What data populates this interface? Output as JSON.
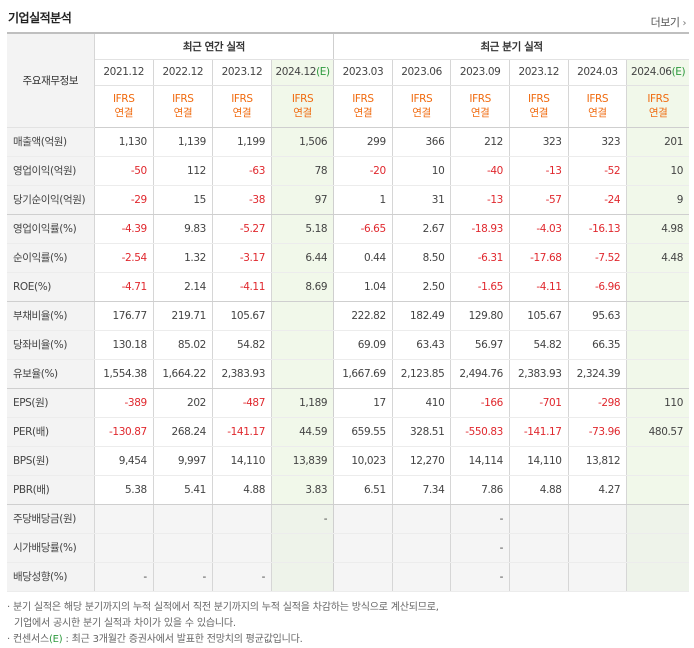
{
  "title": "기업실적분석",
  "more_label": "더보기",
  "corner_label": "주요재무정보",
  "annual_group": "최근 연간 실적",
  "quarter_group": "최근 분기 실적",
  "annual_dates": [
    "2021.12",
    "2022.12",
    "2023.12",
    "2024.12"
  ],
  "quarter_dates": [
    "2023.03",
    "2023.06",
    "2023.09",
    "2023.12",
    "2024.03",
    "2024.06"
  ],
  "est_mark": "(E)",
  "ifrs_label": "IFRS",
  "ifrs_sub": "연결",
  "rows": [
    {
      "label": "매출액(억원)",
      "values": [
        "1,130",
        "1,139",
        "1,199",
        "1,506",
        "299",
        "366",
        "212",
        "323",
        "323",
        "201"
      ]
    },
    {
      "label": "영업이익(억원)",
      "values": [
        "-50",
        "112",
        "-63",
        "78",
        "-20",
        "10",
        "-40",
        "-13",
        "-52",
        "10"
      ]
    },
    {
      "label": "당기순이익(억원)",
      "values": [
        "-29",
        "15",
        "-38",
        "97",
        "1",
        "31",
        "-13",
        "-57",
        "-24",
        "9"
      ]
    },
    {
      "label": "영업이익률(%)",
      "values": [
        "-4.39",
        "9.83",
        "-5.27",
        "5.18",
        "-6.65",
        "2.67",
        "-18.93",
        "-4.03",
        "-16.13",
        "4.98"
      ]
    },
    {
      "label": "순이익률(%)",
      "values": [
        "-2.54",
        "1.32",
        "-3.17",
        "6.44",
        "0.44",
        "8.50",
        "-6.31",
        "-17.68",
        "-7.52",
        "4.48"
      ]
    },
    {
      "label": "ROE(%)",
      "values": [
        "-4.71",
        "2.14",
        "-4.11",
        "8.69",
        "1.04",
        "2.50",
        "-1.65",
        "-4.11",
        "-6.96",
        ""
      ]
    },
    {
      "label": "부채비율(%)",
      "values": [
        "176.77",
        "219.71",
        "105.67",
        "",
        "222.82",
        "182.49",
        "129.80",
        "105.67",
        "95.63",
        ""
      ]
    },
    {
      "label": "당좌비율(%)",
      "values": [
        "130.18",
        "85.02",
        "54.82",
        "",
        "69.09",
        "63.43",
        "56.97",
        "54.82",
        "66.35",
        ""
      ]
    },
    {
      "label": "유보율(%)",
      "values": [
        "1,554.38",
        "1,664.22",
        "2,383.93",
        "",
        "1,667.69",
        "2,123.85",
        "2,494.76",
        "2,383.93",
        "2,324.39",
        ""
      ]
    },
    {
      "label": "EPS(원)",
      "values": [
        "-389",
        "202",
        "-487",
        "1,189",
        "17",
        "410",
        "-166",
        "-701",
        "-298",
        "110"
      ]
    },
    {
      "label": "PER(배)",
      "values": [
        "-130.87",
        "268.24",
        "-141.17",
        "44.59",
        "659.55",
        "328.51",
        "-550.83",
        "-141.17",
        "-73.96",
        "480.57"
      ]
    },
    {
      "label": "BPS(원)",
      "values": [
        "9,454",
        "9,997",
        "14,110",
        "13,839",
        "10,023",
        "12,270",
        "14,114",
        "14,110",
        "13,812",
        ""
      ]
    },
    {
      "label": "PBR(배)",
      "values": [
        "5.38",
        "5.41",
        "4.88",
        "3.83",
        "6.51",
        "7.34",
        "7.86",
        "4.88",
        "4.27",
        ""
      ]
    },
    {
      "label": "주당배당금(원)",
      "values": [
        "",
        "",
        "",
        "-",
        "",
        "",
        "-",
        "",
        "",
        ""
      ]
    },
    {
      "label": "시가배당률(%)",
      "values": [
        "",
        "",
        "",
        "",
        "",
        "",
        "-",
        "",
        "",
        ""
      ]
    },
    {
      "label": "배당성향(%)",
      "values": [
        "-",
        "-",
        "-",
        "",
        "",
        "",
        "-",
        "",
        "",
        ""
      ]
    }
  ],
  "notes": {
    "line1": "· 분기 실적은 해당 분기까지의 누적 실적에서 직전 분기까지의 누적 실적을 차감하는 방식으로 계산되므로,",
    "line2": "기업에서 공시한 분기 실적과 차이가 있을 수 있습니다.",
    "line3_prefix": "· 컨센서스",
    "line3_mark": "(E)",
    "line3_suffix": " : 최근 3개월간 증권사에서 발표한 전망치의 평균값입니다."
  }
}
